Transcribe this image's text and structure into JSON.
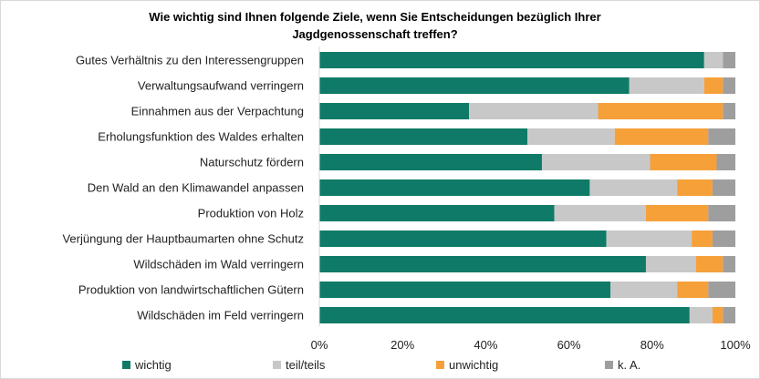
{
  "chart_data": {
    "type": "bar",
    "orientation": "horizontal",
    "stacked": true,
    "title_line1": "Wie wichtig sind Ihnen folgende Ziele, wenn Sie Entscheidungen bezüglich Ihrer",
    "title_line2": "Jagdgenossenschaft treffen?",
    "categories": [
      "Gutes Verhältnis zu den Interessengruppen",
      "Verwaltungsaufwand verringern",
      "Einnahmen aus  der Verpachtung",
      "Erholungsfunktion des Waldes erhalten",
      "Naturschutz fördern",
      "Den Wald an den Klimawandel anpassen",
      "Produktion von Holz",
      "Verjüngung der Hauptbaumarten ohne Schutz",
      "Wildschäden im Wald verringern",
      "Produktion von landwirtschaftlichen Gütern",
      "Wildschäden im Feld verringern"
    ],
    "series": [
      {
        "name": "wichtig",
        "color": "#0f7a67",
        "values": [
          92.5,
          74.5,
          36,
          50,
          53.5,
          65,
          56.5,
          69,
          78.5,
          70,
          89
        ]
      },
      {
        "name": "teil/teils",
        "color": "#c8c8c8",
        "values": [
          4.5,
          18,
          31,
          21,
          26,
          21,
          22,
          20.5,
          12,
          16,
          5.5
        ]
      },
      {
        "name": "unwichtig",
        "color": "#f6a03a",
        "values": [
          0,
          4.5,
          30,
          22.5,
          16,
          8.5,
          15,
          5,
          6.5,
          7.5,
          2.5
        ]
      },
      {
        "name": "k. A.",
        "color": "#9e9e9e",
        "values": [
          3,
          3,
          3,
          6.5,
          4.5,
          5.5,
          6.5,
          5.5,
          3,
          6.5,
          3
        ]
      }
    ],
    "x_ticks": [
      "0%",
      "20%",
      "40%",
      "60%",
      "80%",
      "100%"
    ],
    "xlim": [
      0,
      100
    ],
    "grid": false,
    "legend_position": "bottom"
  }
}
